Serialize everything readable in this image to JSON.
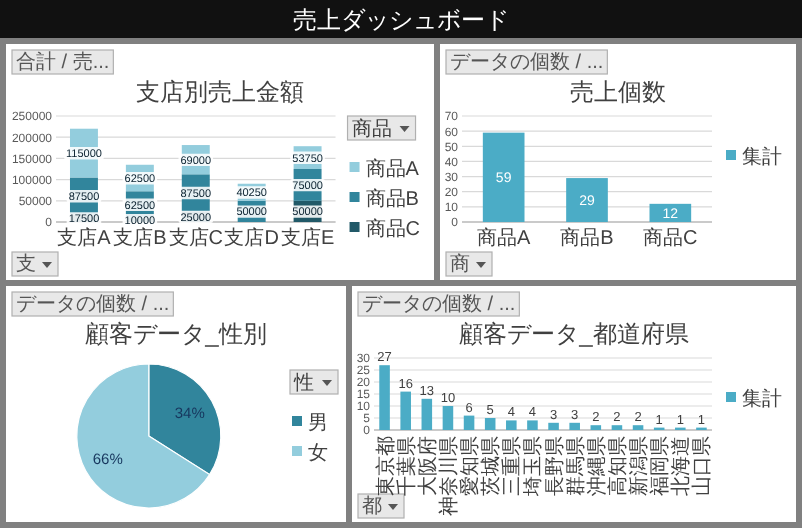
{
  "chart_data": [
    {
      "type": "other",
      "title": "売上ダッシュボード"
    },
    {
      "type": "bar",
      "title": "支店別売上金額",
      "categories": [
        "支店A",
        "支店B",
        "支店C",
        "支店D",
        "支店E"
      ],
      "stacked": true,
      "series": [
        {
          "name": "商品C",
          "color": "#215968",
          "values": [
            17500,
            10000,
            25000,
            null,
            50000
          ]
        },
        {
          "name": "商品B",
          "color": "#31859c",
          "values": [
            87500,
            62500,
            87500,
            50000,
            75000
          ]
        },
        {
          "name": "商品A",
          "color": "#93cddd",
          "values": [
            115000,
            62500,
            69000,
            40250,
            53750
          ]
        }
      ],
      "ylim": [
        0,
        250000
      ],
      "yticks": [
        0,
        50000,
        100000,
        150000,
        200000,
        250000
      ],
      "grid": "y",
      "legend": "right",
      "legend_title": "商品",
      "data_labels": true,
      "annotations": [
        "合計 / 売...",
        "支"
      ]
    },
    {
      "type": "bar",
      "title": "売上個数",
      "categories": [
        "商品A",
        "商品B",
        "商品C"
      ],
      "series": [
        {
          "name": "集計",
          "color": "#4bacc6",
          "values": [
            59,
            29,
            12
          ]
        }
      ],
      "ylim": [
        0,
        70
      ],
      "yticks": [
        0,
        10,
        20,
        30,
        40,
        50,
        60,
        70
      ],
      "grid": "y",
      "legend": "right",
      "data_labels": true,
      "annotations": [
        "データの個数 / ...",
        "商"
      ]
    },
    {
      "type": "pie",
      "title": "顧客データ_性別",
      "categories": [
        "男",
        "女"
      ],
      "values": [
        34,
        66
      ],
      "colors": [
        "#31859c",
        "#93cddd"
      ],
      "value_labels": [
        "34%",
        "66%"
      ],
      "legend": "right",
      "legend_title": "性",
      "annotations": [
        "データの個数 / ..."
      ]
    },
    {
      "type": "bar",
      "title": "顧客データ_都道府県",
      "categories": [
        "東京都",
        "千葉県",
        "大阪府",
        "神奈川県",
        "愛知県",
        "茨城県",
        "三重県",
        "埼玉県",
        "長野県",
        "群馬県",
        "沖縄県",
        "高知県",
        "新潟県",
        "福岡県",
        "北海道",
        "山口県"
      ],
      "series": [
        {
          "name": "集計",
          "color": "#4bacc6",
          "values": [
            27,
            16,
            13,
            10,
            6,
            5,
            4,
            4,
            3,
            3,
            2,
            2,
            2,
            1,
            1,
            1
          ]
        }
      ],
      "ylim": [
        0,
        30
      ],
      "yticks": [
        0,
        5,
        10,
        15,
        20,
        25,
        30
      ],
      "grid": "y",
      "legend": "right",
      "data_labels": true,
      "annotations": [
        "データの個数 / ...",
        "都"
      ]
    }
  ]
}
